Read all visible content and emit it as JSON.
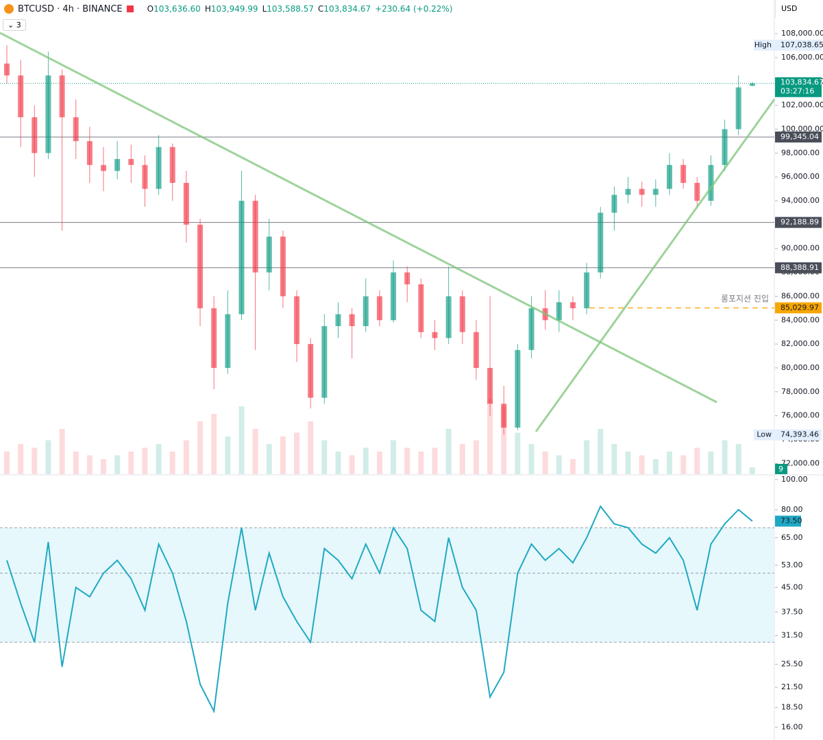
{
  "header": {
    "symbol": "BTCUSD · 4h · BINANCE",
    "open_label": "O",
    "open": "103,636.60",
    "high_label": "H",
    "high": "103,949.99",
    "low_label": "L",
    "low": "103,588.57",
    "close_label": "C",
    "close": "103,834.67",
    "change": "+230.64 (+0.22%)",
    "indicators": "3",
    "currency": "USD"
  },
  "chart_data": [
    {
      "type": "candlestick",
      "open": [
        105500,
        104500,
        101000,
        98000,
        104500,
        101000,
        99000,
        97000,
        96500,
        97500,
        97000,
        95000,
        98500,
        95500,
        92000,
        85000,
        80000,
        84500,
        94000,
        88000,
        91000,
        86000,
        82000,
        77500,
        83500,
        84500,
        83500,
        86000,
        84000,
        88000,
        87000,
        83000,
        82500,
        86000,
        83000,
        80000,
        77000,
        75000,
        81500,
        85000,
        84000,
        85500,
        85000,
        88000,
        93000,
        94500,
        95000,
        94500,
        95000,
        97000,
        95500,
        94000,
        97000,
        100000,
        103636.6
      ],
      "high": [
        107038.65,
        105800,
        102000,
        106500,
        105000,
        102500,
        100200,
        98500,
        99000,
        98700,
        97800,
        99500,
        98800,
        96500,
        92500,
        86000,
        86500,
        96500,
        94500,
        92500,
        91500,
        86500,
        82500,
        84500,
        85500,
        85000,
        87500,
        86500,
        89000,
        88500,
        87500,
        84000,
        88500,
        86500,
        84000,
        86000,
        78500,
        82000,
        86000,
        86500,
        86500,
        86000,
        88800,
        93500,
        95200,
        96000,
        95600,
        95800,
        98000,
        97500,
        96000,
        97800,
        100800,
        104500,
        103949.99
      ],
      "low": [
        103800,
        98500,
        96000,
        97500,
        91500,
        97500,
        95500,
        94800,
        95800,
        95500,
        93500,
        94500,
        94000,
        90500,
        83500,
        78200,
        79500,
        84000,
        81500,
        86500,
        85000,
        80500,
        76600,
        77000,
        82500,
        80800,
        83000,
        83500,
        83800,
        85500,
        82500,
        81500,
        82000,
        82000,
        79000,
        76000,
        74393.46,
        74800,
        80800,
        83200,
        83000,
        84000,
        84500,
        87500,
        91500,
        93800,
        93500,
        93500,
        94500,
        95000,
        93500,
        93600,
        96500,
        99500,
        103588.57
      ],
      "close": [
        104500,
        101000,
        98000,
        104500,
        101000,
        99000,
        97000,
        96500,
        97500,
        97000,
        95000,
        98500,
        95500,
        92000,
        85000,
        80000,
        84500,
        94000,
        88000,
        91000,
        86000,
        82000,
        77500,
        83500,
        84500,
        83500,
        86000,
        84000,
        88000,
        87000,
        83000,
        82500,
        86000,
        83000,
        80000,
        77000,
        75000,
        81500,
        85000,
        84000,
        85500,
        85000,
        88000,
        93000,
        94500,
        95000,
        94500,
        95000,
        97000,
        95500,
        94000,
        97000,
        100000,
        103500,
        103834.67
      ],
      "volume": [
        30,
        40,
        35,
        45,
        60,
        30,
        25,
        20,
        25,
        30,
        35,
        40,
        30,
        45,
        70,
        80,
        50,
        90,
        60,
        40,
        50,
        55,
        70,
        45,
        30,
        25,
        35,
        30,
        45,
        35,
        30,
        35,
        60,
        40,
        45,
        100,
        90,
        55,
        40,
        30,
        25,
        20,
        45,
        60,
        40,
        30,
        25,
        20,
        30,
        25,
        35,
        30,
        45,
        40,
        9
      ],
      "up_color": "#089981",
      "down_color": "#f23645",
      "ylim": [
        71100,
        109100
      ],
      "yticks": [
        {
          "value": 108000,
          "label": "108,000.00"
        },
        {
          "value": 106000,
          "label": "106,000.00"
        },
        {
          "value": 104000,
          "label": "104,000.00"
        },
        {
          "value": 102000,
          "label": "102,000.00"
        },
        {
          "value": 100000,
          "label": "100,000.00"
        },
        {
          "value": 98000,
          "label": "98,000.00"
        },
        {
          "value": 96000,
          "label": "96,000.00"
        },
        {
          "value": 94000,
          "label": "94,000.00"
        },
        {
          "value": 92000,
          "label": "92,000.00"
        },
        {
          "value": 90000,
          "label": "90,000.00"
        },
        {
          "value": 88000,
          "label": "88,000.00"
        },
        {
          "value": 86000,
          "label": "86,000.00"
        },
        {
          "value": 84000,
          "label": "84,000.00"
        },
        {
          "value": 82000,
          "label": "82,000.00"
        },
        {
          "value": 80000,
          "label": "80,000.00"
        },
        {
          "value": 78000,
          "label": "78,000.00"
        },
        {
          "value": 76000,
          "label": "76,000.00"
        },
        {
          "value": 74000,
          "label": "74,000.00"
        },
        {
          "value": 72000,
          "label": "72,000.00"
        }
      ],
      "price_labels": [
        {
          "name": "High",
          "value": 107038.65,
          "label": "107,038.65"
        },
        {
          "name": "Low",
          "value": 74393.46,
          "label": "74,393.46"
        }
      ],
      "last_price": {
        "value": 103834.67,
        "label": "103,834.67",
        "countdown": "03:27:16"
      },
      "levels": [
        {
          "value": 99345.04,
          "label": "99,345.04",
          "color": "#787b86"
        },
        {
          "value": 92188.89,
          "label": "92,188.89",
          "color": "#787b86"
        },
        {
          "value": 88388.91,
          "label": "88,388.91",
          "color": "#787b86"
        },
        {
          "value": 85029.97,
          "label": "85,029.97",
          "color": "#f7a600",
          "dashed": true,
          "annotation": "롱포지션 진입"
        }
      ]
    },
    {
      "type": "line",
      "name": "RSI",
      "color": "#1fa8c4",
      "log_scale": true,
      "values": [
        55,
        40,
        30,
        63,
        25,
        45,
        42,
        50,
        55,
        48,
        38,
        62,
        50,
        35,
        22,
        18,
        40,
        70,
        38,
        58,
        42,
        35,
        30,
        60,
        55,
        48,
        62,
        50,
        70,
        60,
        38,
        35,
        65,
        45,
        38,
        20,
        24,
        50,
        62,
        55,
        60,
        54,
        65,
        82,
        72,
        70,
        62,
        58,
        65,
        55,
        38,
        62,
        72,
        80,
        73.5
      ],
      "last_label": "73.50",
      "ylim": [
        14.7,
        103
      ],
      "yticks": [
        {
          "value": 100,
          "label": "100.00"
        },
        {
          "value": 80,
          "label": "80.00"
        },
        {
          "value": 65,
          "label": "65.00"
        },
        {
          "value": 53,
          "label": "53.00"
        },
        {
          "value": 45,
          "label": "45.00"
        },
        {
          "value": 37.5,
          "label": "37.50"
        },
        {
          "value": 31.5,
          "label": "31.50"
        },
        {
          "value": 25.5,
          "label": "25.50"
        },
        {
          "value": 21.5,
          "label": "21.50"
        },
        {
          "value": 18.5,
          "label": "18.50"
        },
        {
          "value": 16,
          "label": "16.00"
        }
      ],
      "bands": [
        30,
        50,
        70
      ],
      "band_fill": "#e6f8fb"
    }
  ]
}
